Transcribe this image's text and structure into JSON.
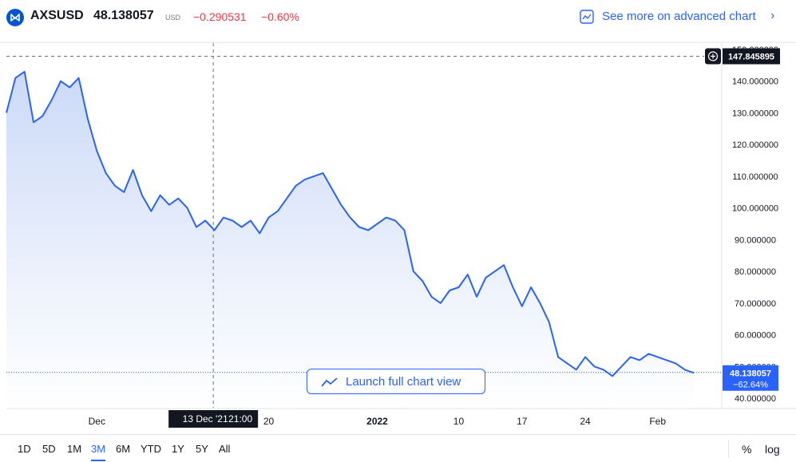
{
  "header": {
    "symbol": "AXSUSD",
    "price": "48.138057",
    "currency": "USD",
    "change": "−0.290531",
    "change_pct": "−0.60%",
    "advanced_link": "See more on advanced chart",
    "brand_color": "#0055d5",
    "negative_color": "#f23645"
  },
  "launch_button": {
    "label": "Launch full chart view"
  },
  "toolbar": {
    "timeframes": [
      "1D",
      "5D",
      "1M",
      "3M",
      "6M",
      "YTD",
      "1Y",
      "5Y",
      "All"
    ],
    "active": "3M",
    "percent_label": "%",
    "log_label": "log"
  },
  "chart_data": {
    "type": "area",
    "line_color": "#2962ff",
    "fill_color": "#dbe6fb",
    "ylim": [
      37,
      152
    ],
    "xlim": [
      "2021-11-21",
      "2022-02-08"
    ],
    "x_ticks": [
      {
        "label": "Dec",
        "date": "2021-12-01"
      },
      {
        "label": "20",
        "date": "2021-12-20"
      },
      {
        "label": "2022",
        "date": "2022-01-01"
      },
      {
        "label": "10",
        "date": "2022-01-10"
      },
      {
        "label": "17",
        "date": "2022-01-17"
      },
      {
        "label": "24",
        "date": "2022-01-24"
      },
      {
        "label": "Feb",
        "date": "2022-02-01"
      }
    ],
    "y_ticks": [
      "40.000000",
      "50.000000",
      "60.000000",
      "70.000000",
      "80.000000",
      "90.000000",
      "100.000000",
      "110.000000",
      "120.000000",
      "130.000000",
      "140.000000",
      "150.000000"
    ],
    "crosshair": {
      "date_label": "13 Dec '21",
      "time_label": "21:00",
      "date": "2021-12-13",
      "price": 147.845895,
      "price_label": "147.845895"
    },
    "last_price": {
      "value": 48.138057,
      "label": "48.138057",
      "change_label": "−62.64%"
    },
    "series": [
      {
        "x": [
          "2021-11-21",
          "2021-11-22",
          "2021-11-23",
          "2021-11-24",
          "2021-11-25",
          "2021-11-26",
          "2021-11-27",
          "2021-11-28",
          "2021-11-29",
          "2021-11-30",
          "2021-12-01",
          "2021-12-02",
          "2021-12-03",
          "2021-12-04",
          "2021-12-05",
          "2021-12-06",
          "2021-12-07",
          "2021-12-08",
          "2021-12-09",
          "2021-12-10",
          "2021-12-11",
          "2021-12-12",
          "2021-12-13",
          "2021-12-14",
          "2021-12-15",
          "2021-12-16",
          "2021-12-17",
          "2021-12-18",
          "2021-12-19",
          "2021-12-20",
          "2021-12-21",
          "2021-12-22",
          "2021-12-23",
          "2021-12-24",
          "2021-12-25",
          "2021-12-26",
          "2021-12-27",
          "2021-12-28",
          "2021-12-29",
          "2021-12-30",
          "2021-12-31",
          "2022-01-01",
          "2022-01-02",
          "2022-01-03",
          "2022-01-04",
          "2022-01-05",
          "2022-01-06",
          "2022-01-07",
          "2022-01-08",
          "2022-01-09",
          "2022-01-10",
          "2022-01-11",
          "2022-01-12",
          "2022-01-13",
          "2022-01-14",
          "2022-01-15",
          "2022-01-16",
          "2022-01-17",
          "2022-01-18",
          "2022-01-19",
          "2022-01-20",
          "2022-01-21",
          "2022-01-22",
          "2022-01-23",
          "2022-01-24",
          "2022-01-25",
          "2022-01-26",
          "2022-01-27",
          "2022-01-28",
          "2022-01-29",
          "2022-01-30",
          "2022-01-31",
          "2022-02-01",
          "2022-02-02",
          "2022-02-03",
          "2022-02-04",
          "2022-02-05"
        ],
        "y": [
          130,
          141,
          143,
          127,
          129,
          134,
          140,
          138,
          141,
          128,
          118,
          111,
          107,
          105,
          112,
          104,
          99,
          104,
          101,
          103,
          100,
          94,
          96,
          93,
          97,
          96,
          94,
          96,
          92,
          97,
          99,
          103,
          107,
          109,
          110,
          111,
          106,
          101,
          97,
          94,
          93,
          95,
          97,
          96,
          93,
          80,
          77,
          72,
          70,
          74,
          75,
          79,
          72,
          78,
          80,
          82,
          75,
          69,
          75,
          70,
          64,
          53,
          51,
          49,
          53,
          50,
          49,
          47,
          50,
          53,
          52,
          54,
          53,
          52,
          51,
          49,
          48
        ]
      }
    ]
  }
}
